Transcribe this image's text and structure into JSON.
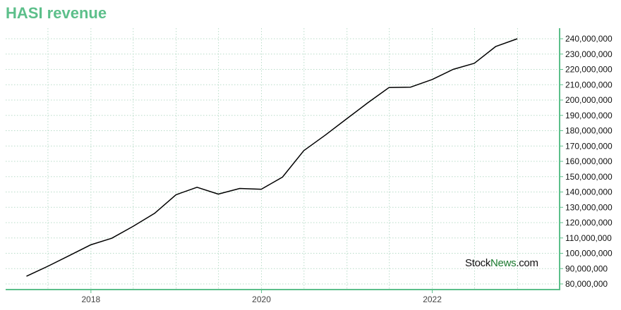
{
  "title": "HASI revenue",
  "watermark": {
    "part1": "Stock",
    "part2": "News",
    "part3": ".com"
  },
  "colors": {
    "accent": "#5cbf8a",
    "line": "#000000",
    "grid": "#b8dcc8",
    "brand": "#1b7a2f"
  },
  "chart_data": {
    "type": "line",
    "title": "HASI revenue",
    "xlabel": "",
    "ylabel": "",
    "grid": true,
    "y_axis_side": "right",
    "ylim": [
      80000000,
      240000000
    ],
    "xlim": [
      "2017-01-01",
      "2023-06-30"
    ],
    "x_ticks": [
      "2018",
      "2020",
      "2022"
    ],
    "y_ticks": [
      "80,000,000",
      "90,000,000",
      "100,000,000",
      "110,000,000",
      "120,000,000",
      "130,000,000",
      "140,000,000",
      "150,000,000",
      "160,000,000",
      "170,000,000",
      "180,000,000",
      "190,000,000",
      "200,000,000",
      "210,000,000",
      "220,000,000",
      "230,000,000",
      "240,000,000"
    ],
    "x": [
      "2017-03-31",
      "2017-06-30",
      "2017-09-30",
      "2017-12-31",
      "2018-03-31",
      "2018-06-30",
      "2018-09-30",
      "2018-12-31",
      "2019-03-31",
      "2019-06-30",
      "2019-09-30",
      "2019-12-31",
      "2020-03-31",
      "2020-06-30",
      "2020-09-30",
      "2020-12-31",
      "2021-03-31",
      "2021-06-30",
      "2021-09-30",
      "2021-12-31",
      "2022-03-31",
      "2022-06-30",
      "2022-09-30",
      "2022-12-31"
    ],
    "values": [
      85000000,
      91500000,
      98500000,
      105500000,
      109800000,
      117500000,
      126000000,
      138200000,
      143100000,
      138600000,
      142300000,
      141800000,
      149700000,
      167000000,
      177100000,
      187800000,
      198200000,
      208200000,
      208400000,
      213400000,
      220000000,
      224000000,
      235000000,
      240000000
    ]
  }
}
